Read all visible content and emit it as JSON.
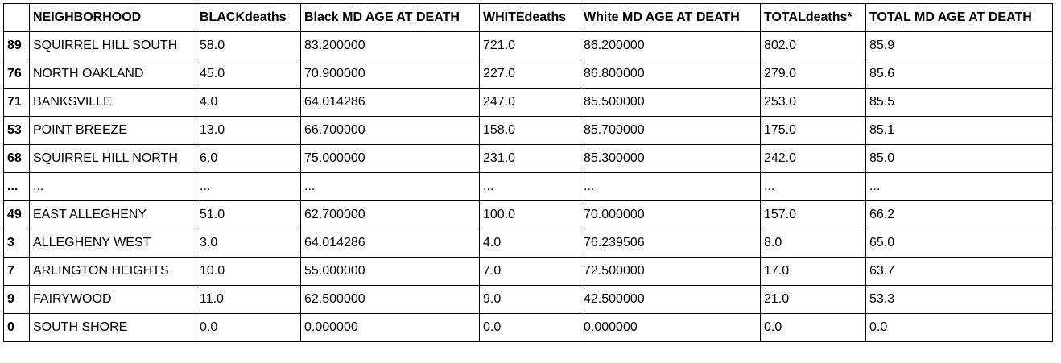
{
  "table": {
    "index_header": "",
    "columns": [
      "NEIGHBORHOOD",
      "BLACKdeaths",
      "Black MD AGE AT DEATH",
      "WHITEdeaths",
      "White MD AGE AT DEATH",
      "TOTALdeaths*",
      "TOTAL MD AGE AT DEATH"
    ],
    "rows": [
      {
        "index": "89",
        "cells": [
          "SQUIRREL HILL SOUTH",
          "58.0",
          "83.200000",
          "721.0",
          "86.200000",
          "802.0",
          "85.9"
        ]
      },
      {
        "index": "76",
        "cells": [
          "NORTH OAKLAND",
          "45.0",
          "70.900000",
          "227.0",
          "86.800000",
          "279.0",
          "85.6"
        ]
      },
      {
        "index": "71",
        "cells": [
          "BANKSVILLE",
          "4.0",
          "64.014286",
          "247.0",
          "85.500000",
          "253.0",
          "85.5"
        ]
      },
      {
        "index": "53",
        "cells": [
          "POINT BREEZE",
          "13.0",
          "66.700000",
          "158.0",
          "85.700000",
          "175.0",
          "85.1"
        ]
      },
      {
        "index": "68",
        "cells": [
          "SQUIRREL HILL NORTH",
          "6.0",
          "75.000000",
          "231.0",
          "85.300000",
          "242.0",
          "85.0"
        ]
      },
      {
        "index": "...",
        "cells": [
          "...",
          "...",
          "...",
          "...",
          "...",
          "...",
          "..."
        ]
      },
      {
        "index": "49",
        "cells": [
          "EAST ALLEGHENY",
          "51.0",
          "62.700000",
          "100.0",
          "70.000000",
          "157.0",
          "66.2"
        ]
      },
      {
        "index": "3",
        "cells": [
          "ALLEGHENY WEST",
          "3.0",
          "64.014286",
          "4.0",
          "76.239506",
          "8.0",
          "65.0"
        ]
      },
      {
        "index": "7",
        "cells": [
          "ARLINGTON HEIGHTS",
          "10.0",
          "55.000000",
          "7.0",
          "72.500000",
          "17.0",
          "63.7"
        ]
      },
      {
        "index": "9",
        "cells": [
          "FAIRYWOOD",
          "11.0",
          "62.500000",
          "9.0",
          "42.500000",
          "21.0",
          "53.3"
        ]
      },
      {
        "index": "0",
        "cells": [
          "SOUTH SHORE",
          "0.0",
          "0.000000",
          "0.0",
          "0.000000",
          "0.0",
          "0.0"
        ]
      }
    ]
  }
}
